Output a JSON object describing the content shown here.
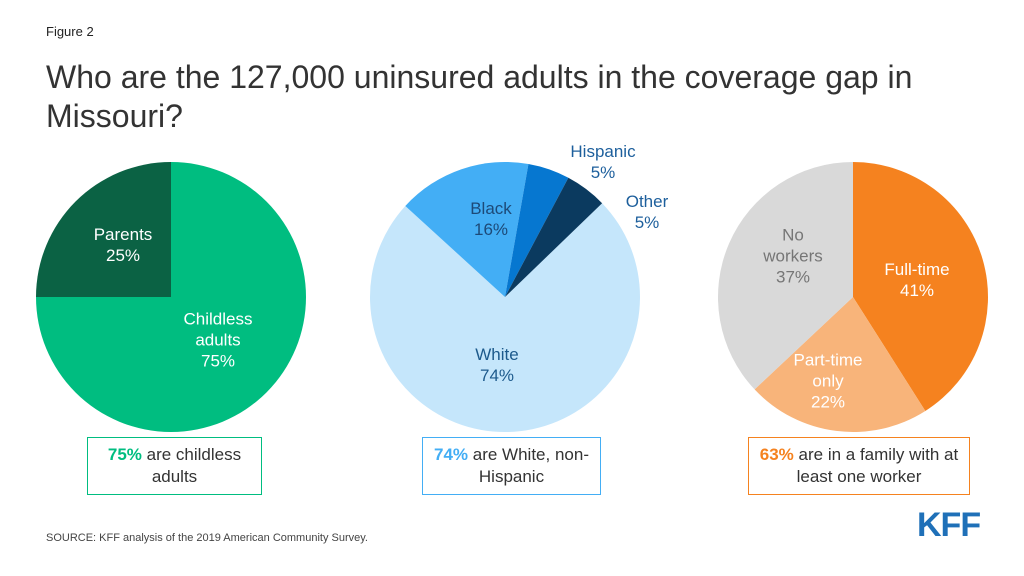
{
  "figure_label": "Figure 2",
  "title": "Who are the 127,000 uninsured adults in the coverage gap in Missouri?",
  "source": "SOURCE: KFF analysis of the 2019 American Community Survey.",
  "logo": "KFF",
  "chart_data": [
    {
      "type": "pie",
      "categories": [
        "Childless adults",
        "Parents"
      ],
      "values": [
        75,
        25
      ],
      "value_labels": [
        "75%",
        "25%"
      ],
      "colors": [
        "#00bd80",
        "#0b6244"
      ],
      "label_colors": [
        "#ffffff",
        "#ffffff"
      ],
      "callout": {
        "highlight": "75%",
        "text": "are childless adults",
        "color": "#00bd80"
      }
    },
    {
      "type": "pie",
      "categories": [
        "White",
        "Black",
        "Hispanic",
        "Other"
      ],
      "values": [
        74,
        16,
        5,
        5
      ],
      "value_labels": [
        "74%",
        "16%",
        "5%",
        "5%"
      ],
      "colors": [
        "#c5e6fb",
        "#43aef5",
        "#0677d0",
        "#0b3a5f"
      ],
      "label_colors": [
        "#1d5a8c",
        "#1d4a78",
        "#1d5f9c",
        "#1d5f9c"
      ],
      "callout": {
        "highlight": "74%",
        "text": "are White, non-Hispanic",
        "color": "#43aef5"
      }
    },
    {
      "type": "pie",
      "categories": [
        "Full-time",
        "Part-time only",
        "No workers"
      ],
      "values": [
        41,
        22,
        37
      ],
      "value_labels": [
        "41%",
        "22%",
        "37%"
      ],
      "colors": [
        "#f5821f",
        "#f8b47a",
        "#d9d9d9"
      ],
      "label_colors": [
        "#ffffff",
        "#ffffff",
        "#767676"
      ],
      "callout": {
        "highlight": "63%",
        "text": "are in a family with at least one worker",
        "color": "#f5821f"
      }
    }
  ]
}
